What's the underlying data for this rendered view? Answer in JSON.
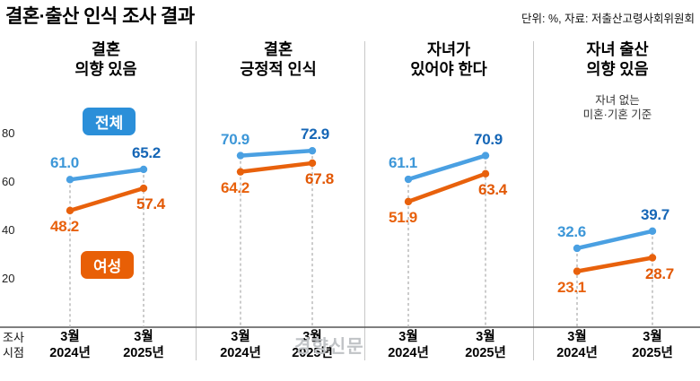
{
  "header": {
    "title": "결혼·출산 인식 조사 결과",
    "source": "단위: %, 자료: 저출산고령사회위원회"
  },
  "legend": {
    "total": "전체",
    "women": "여성"
  },
  "axis": {
    "y_ticks": [
      80,
      60,
      40,
      20
    ],
    "x_caption": "조사 시점",
    "watermark": "경향신문"
  },
  "colors": {
    "total_line": "#4aa0e2",
    "total_label": "#3d97d8",
    "total_label_bold": "#1566b6",
    "women_line": "#e8610c",
    "women_label": "#e8610c",
    "badge_total_bg": "#2b8fd9",
    "badge_women_bg": "#e85f06",
    "dashed_guide": "#aaaaaa",
    "divider": "#c8c8c8",
    "baseline": "#555555"
  },
  "chart_data": {
    "type": "line",
    "title": "결혼·출산 인식 조사 결과",
    "unit": "%",
    "x": [
      "3월 2024년",
      "3월 2025년"
    ],
    "ylim": [
      0,
      85
    ],
    "y_ticks": [
      20,
      40,
      60,
      80
    ],
    "grid": false,
    "legend_position": "inline-panel-1",
    "panels": [
      {
        "title": "결혼\n의향 있음",
        "series": [
          {
            "name": "전체",
            "values": [
              61.0,
              65.2
            ]
          },
          {
            "name": "여성",
            "values": [
              48.2,
              57.4
            ]
          }
        ]
      },
      {
        "title": "결혼\n긍정적 인식",
        "series": [
          {
            "name": "전체",
            "values": [
              70.9,
              72.9
            ]
          },
          {
            "name": "여성",
            "values": [
              64.2,
              67.8
            ]
          }
        ]
      },
      {
        "title": "자녀가\n있어야 한다",
        "series": [
          {
            "name": "전체",
            "values": [
              61.1,
              70.9
            ]
          },
          {
            "name": "여성",
            "values": [
              51.9,
              63.4
            ]
          }
        ]
      },
      {
        "title": "자녀 출산\n의향 있음",
        "note": "자녀 없는\n미혼·기혼 기준",
        "series": [
          {
            "name": "전체",
            "values": [
              32.6,
              39.7
            ]
          },
          {
            "name": "여성",
            "values": [
              23.1,
              28.7
            ]
          }
        ]
      }
    ]
  }
}
